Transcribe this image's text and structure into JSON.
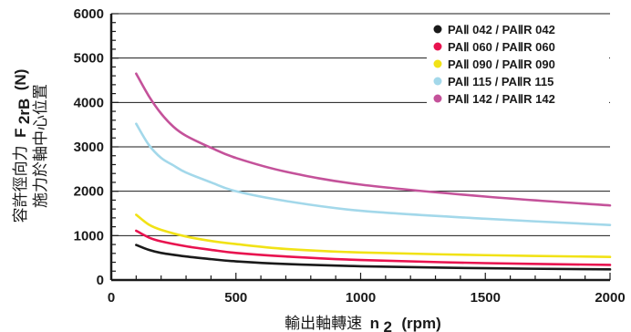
{
  "chart_data": {
    "type": "line",
    "xlabel": "輸出軸轉速 n₂ (rpm)",
    "xlabel_main": "輸出軸轉速",
    "xlabel_var": "n",
    "xlabel_sub": "2",
    "xlabel_unit": "(rpm)",
    "ylabel_line1": "容許徑向力",
    "ylabel_line1_var": "F",
    "ylabel_line1_sub": "2rB",
    "ylabel_line1_unit": "(N)",
    "ylabel_line2": "施力於軸中心位置",
    "xlim": [
      0,
      2000
    ],
    "ylim": [
      0,
      6000
    ],
    "xticks": [
      0,
      500,
      1000,
      1500,
      2000
    ],
    "yticks": [
      0,
      1000,
      2000,
      3000,
      4000,
      5000,
      6000
    ],
    "grid": "horizontal",
    "legend_position": "top-right",
    "series": [
      {
        "name": "PAⅡ 042 / PAⅡR 042",
        "color": "#1a1a1a",
        "x": [
          100,
          150,
          200,
          300,
          400,
          500,
          700,
          1000,
          1500,
          2000
        ],
        "y": [
          790,
          680,
          610,
          530,
          470,
          420,
          360,
          310,
          265,
          240
        ]
      },
      {
        "name": "PAⅡ 060 / PAⅡR 060",
        "color": "#e8134f",
        "x": [
          100,
          150,
          200,
          300,
          400,
          500,
          700,
          1000,
          1500,
          2000
        ],
        "y": [
          1110,
          960,
          870,
          760,
          680,
          610,
          530,
          450,
          380,
          340
        ]
      },
      {
        "name": "PAⅡ 090 / PAⅡR 090",
        "color": "#f1e216",
        "x": [
          100,
          150,
          200,
          300,
          400,
          500,
          700,
          1000,
          1500,
          2000
        ],
        "y": [
          1470,
          1250,
          1130,
          980,
          880,
          810,
          700,
          620,
          560,
          520
        ]
      },
      {
        "name": "PAⅡ 115 / PAⅡR 115",
        "color": "#a3d8ea",
        "x": [
          100,
          150,
          200,
          250,
          300,
          400,
          500,
          700,
          1000,
          1500,
          2000
        ],
        "y": [
          3520,
          3050,
          2750,
          2580,
          2420,
          2200,
          2000,
          1780,
          1560,
          1380,
          1240
        ]
      },
      {
        "name": "PAⅡ 142 / PAⅡR 142",
        "color": "#c4529a",
        "x": [
          100,
          150,
          200,
          250,
          300,
          400,
          500,
          700,
          1000,
          1500,
          2000
        ],
        "y": [
          4650,
          4150,
          3750,
          3450,
          3250,
          2980,
          2750,
          2440,
          2150,
          1880,
          1680
        ]
      }
    ]
  }
}
